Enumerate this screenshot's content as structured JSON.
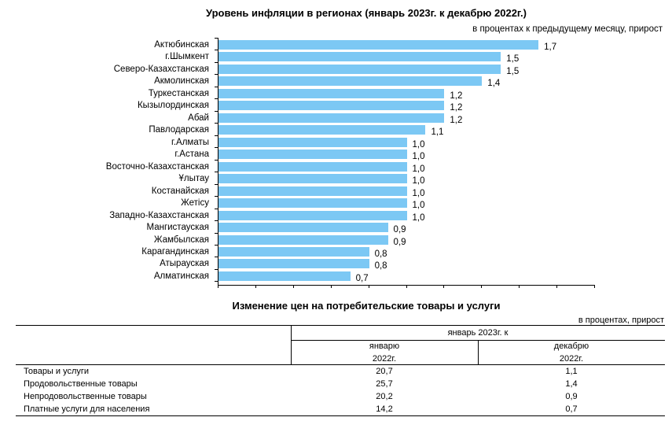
{
  "chart_data": {
    "type": "bar",
    "orientation": "horizontal",
    "title": "Уровень инфляции в регионах (январь 2023г. к декабрю 2022г.)",
    "subtitle": "в процентах к предыдущему месяцу, прирост",
    "categories": [
      "Актюбинская",
      "г.Шымкент",
      "Северо-Казахстанская",
      "Акмолинская",
      "Туркестанская",
      "Кызылординская",
      "Абай",
      "Павлодарская",
      "г.Алматы",
      "г.Астана",
      "Восточно-Казахстанская",
      "Ұлытау",
      "Костанайская",
      "Жетісу",
      "Западно-Казахстанская",
      "Мангистауская",
      "Жамбылская",
      "Карагандинская",
      "Атырауская",
      "Алматинская"
    ],
    "values": [
      1.7,
      1.5,
      1.5,
      1.4,
      1.2,
      1.2,
      1.2,
      1.1,
      1.0,
      1.0,
      1.0,
      1.0,
      1.0,
      1.0,
      1.0,
      0.9,
      0.9,
      0.8,
      0.8,
      0.7
    ],
    "value_labels": [
      "1,7",
      "1,5",
      "1,5",
      "1,4",
      "1,2",
      "1,2",
      "1,2",
      "1,1",
      "1,0",
      "1,0",
      "1,0",
      "1,0",
      "1,0",
      "1,0",
      "1,0",
      "0,9",
      "0,9",
      "0,8",
      "0,8",
      "0,7"
    ],
    "xlim": [
      0,
      2.0
    ],
    "xtick_step": 0.2,
    "grid": false,
    "bar_color": "#7cc8f4"
  },
  "table": {
    "title": "Изменение цен на потребительские товары и услуги",
    "unit": "в процентах, прирост",
    "group_header": "январь 2023г. к",
    "col_headers": [
      {
        "line1": "январю",
        "line2": "2022г."
      },
      {
        "line1": "декабрю",
        "line2": "2022г."
      }
    ],
    "rows": [
      {
        "label": "Товары и услуги",
        "v1": "20,7",
        "v2": "1,1"
      },
      {
        "label": "Продовольственные товары",
        "v1": "25,7",
        "v2": "1,4"
      },
      {
        "label": "Непродовольственные товары",
        "v1": "20,2",
        "v2": "0,9"
      },
      {
        "label": "Платные услуги для населения",
        "v1": "14,2",
        "v2": "0,7"
      }
    ]
  }
}
